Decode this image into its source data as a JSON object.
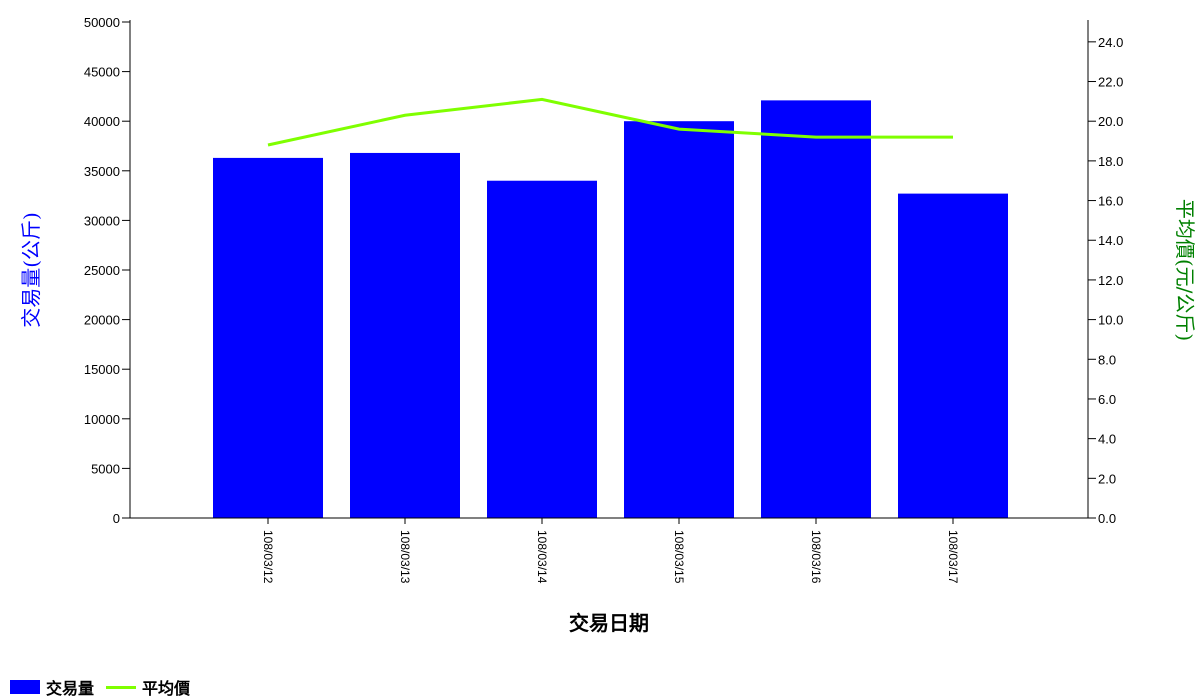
{
  "chart_data": {
    "type": "bar",
    "xlabel": "交易日期",
    "categories": [
      "108/03/12",
      "108/03/13",
      "108/03/14",
      "108/03/15",
      "108/03/16",
      "108/03/17"
    ],
    "series": [
      {
        "name": "交易量",
        "type": "bar",
        "axis": "left",
        "color": "#0000ff",
        "values": [
          36300,
          36800,
          34000,
          40000,
          42100,
          32700
        ]
      },
      {
        "name": "平均價",
        "type": "line",
        "axis": "right",
        "color": "#7fff00",
        "values": [
          18.8,
          20.3,
          21.1,
          19.6,
          19.2,
          19.2
        ]
      }
    ],
    "y_left": {
      "label": "交易量(公斤)",
      "color": "#0000ff",
      "ylim": [
        0,
        50000
      ],
      "ticks": [
        "0",
        "5000",
        "10000",
        "15000",
        "20000",
        "25000",
        "30000",
        "35000",
        "40000",
        "45000",
        "50000"
      ]
    },
    "y_right": {
      "label": "平均價(元/公斤)",
      "color": "#008000",
      "ylim": [
        0,
        25
      ],
      "ticks": [
        "0.0",
        "2.0",
        "4.0",
        "6.0",
        "8.0",
        "10.0",
        "12.0",
        "14.0",
        "16.0",
        "18.0",
        "20.0",
        "22.0",
        "24.0"
      ]
    },
    "grid": false,
    "legend_position": "bottom-left"
  }
}
